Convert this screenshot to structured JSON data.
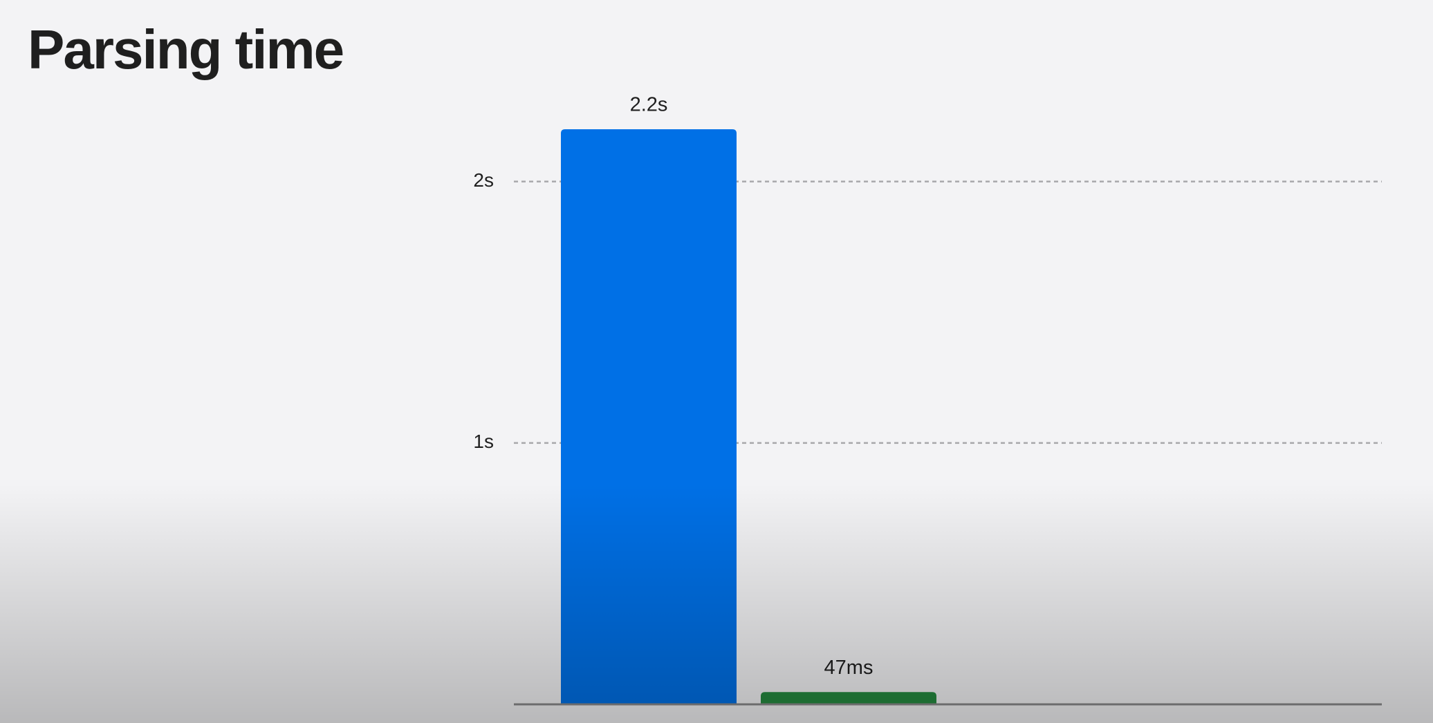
{
  "chart_data": {
    "type": "bar",
    "title": "Parsing time",
    "categories": [
      null,
      null
    ],
    "values": [
      2.2,
      0.047
    ],
    "value_labels": [
      "2.2s",
      "47ms"
    ],
    "colors": [
      "#0070e6",
      "#258a40"
    ],
    "ylim": [
      0,
      2.2
    ],
    "yticks": [
      {
        "value": 1,
        "label": "1s"
      },
      {
        "value": 2,
        "label": "2s"
      }
    ],
    "grid": true
  }
}
